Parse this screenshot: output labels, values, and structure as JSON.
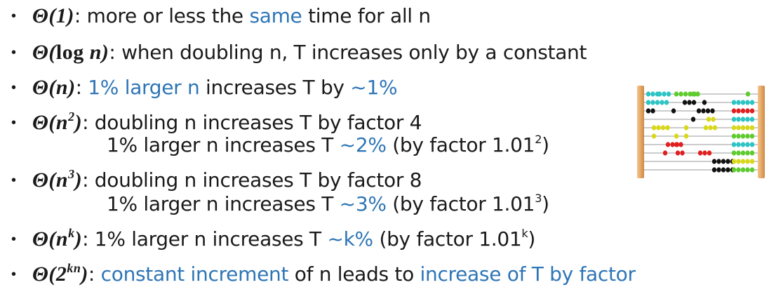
{
  "rows": [
    {
      "math": "Θ(1)",
      "parts": [
        ": more or less the ",
        "same",
        " time for all n"
      ]
    },
    {
      "math_pre": "Θ(",
      "math_log": "log",
      "math_post": " n)",
      "text": ": when doubling n, T increases only by a constant"
    },
    {
      "math": "Θ(n)",
      "parts": [
        ": ",
        "1% larger n",
        " increases T by ",
        "~1%"
      ]
    },
    {
      "math_pre": "Θ(n",
      "math_sup": "2",
      "math_post": ")",
      "line1": ": doubling n increases T by factor 4",
      "line2": [
        "1% larger n increases T ",
        "~2%",
        " (by factor 1.01",
        "2",
        ")"
      ]
    },
    {
      "math_pre": "Θ(n",
      "math_sup": "3",
      "math_post": ")",
      "line1": ": doubling n increases T by factor 8",
      "line2": [
        "1% larger n increases T ",
        "~3%",
        " (by factor 1.01",
        "3",
        ")"
      ]
    },
    {
      "math_pre": "Θ(n",
      "math_sup": "k",
      "math_post": ")",
      "parts": [
        ": 1% larger n increases T ",
        "~k%",
        " (by factor 1.01",
        "k",
        ")"
      ]
    },
    {
      "math_pre": "Θ(2",
      "math_sup": "kn",
      "math_post": ")",
      "parts": [
        ": ",
        "constant increment",
        " of n leads to ",
        "increase of T by factor"
      ]
    }
  ],
  "bullet_char": "•",
  "colors": {
    "text": "#1a1a1a",
    "accent_blue": "#2e75b6",
    "frame": "#d9a066",
    "bead_colors": [
      "#2cc4c4",
      "#5ecb2e",
      "#111111",
      "#e02020",
      "#d8d81a"
    ]
  },
  "icons": {
    "abacus": "abacus-icon"
  }
}
